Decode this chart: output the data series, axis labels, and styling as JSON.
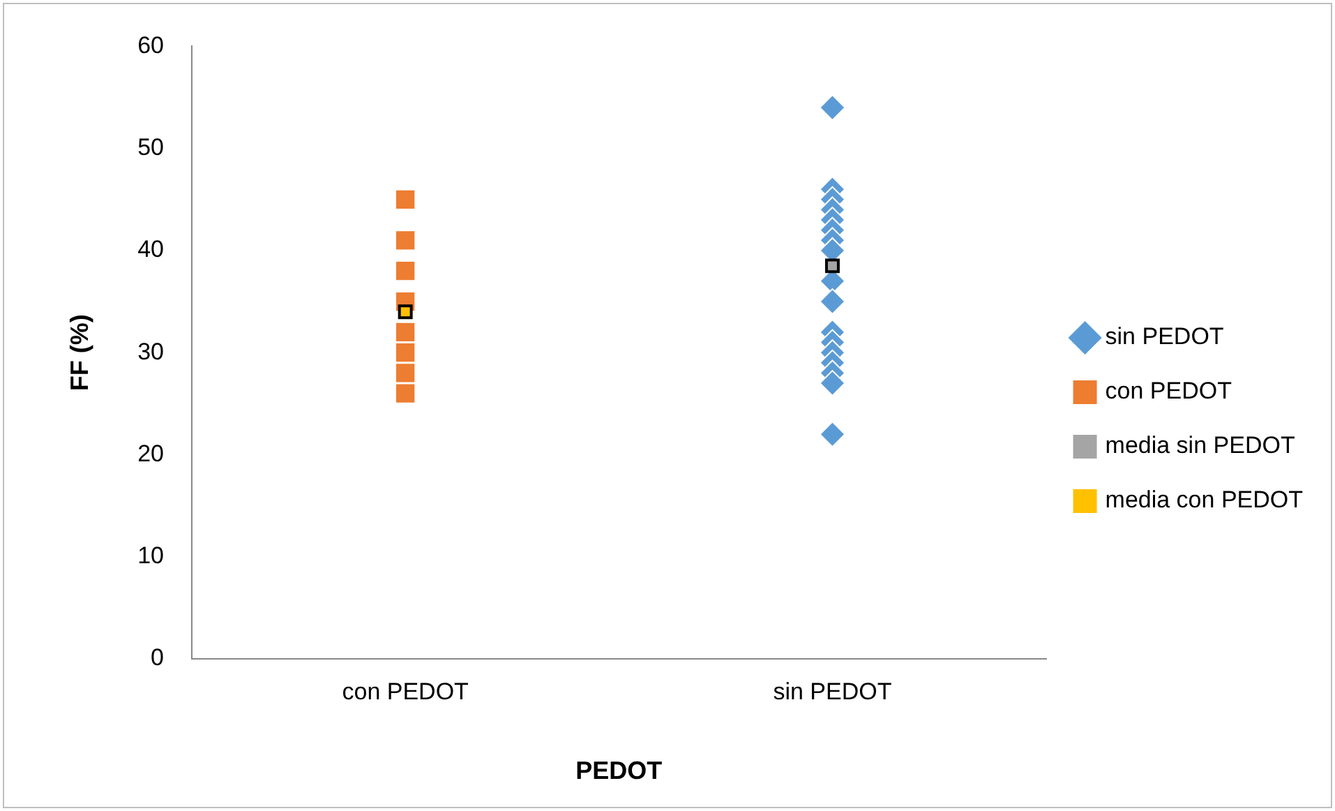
{
  "chart_data": {
    "type": "scatter",
    "xlabel": "PEDOT",
    "ylabel": "FF (%)",
    "categories": [
      "con PEDOT",
      "sin PEDOT"
    ],
    "ylim": [
      0,
      60
    ],
    "yticks": [
      0,
      10,
      20,
      30,
      40,
      50,
      60
    ],
    "grid": false,
    "legend": "right",
    "series": [
      {
        "name": "sin PEDOT",
        "color": "#5b9bd5",
        "marker": "diamond",
        "x": [
          "sin PEDOT",
          "sin PEDOT",
          "sin PEDOT",
          "sin PEDOT",
          "sin PEDOT",
          "sin PEDOT",
          "sin PEDOT",
          "sin PEDOT",
          "sin PEDOT",
          "sin PEDOT",
          "sin PEDOT",
          "sin PEDOT",
          "sin PEDOT",
          "sin PEDOT",
          "sin PEDOT",
          "sin PEDOT",
          "sin PEDOT"
        ],
        "values": [
          54,
          46,
          45,
          44,
          43,
          42,
          41,
          40,
          37,
          35,
          32,
          31,
          30,
          29,
          28,
          27,
          22
        ]
      },
      {
        "name": "con PEDOT",
        "color": "#ed7d31",
        "marker": "square",
        "x": [
          "con PEDOT",
          "con PEDOT",
          "con PEDOT",
          "con PEDOT",
          "con PEDOT",
          "con PEDOT",
          "con PEDOT",
          "con PEDOT"
        ],
        "values": [
          45,
          41,
          38,
          35,
          32,
          30,
          28,
          26
        ]
      },
      {
        "name": "media sin PEDOT",
        "color": "#a5a5a5",
        "marker": "square",
        "x": [
          "sin PEDOT"
        ],
        "values": [
          38.5
        ]
      },
      {
        "name": "media con PEDOT",
        "color": "#ffc000",
        "marker": "square",
        "x": [
          "con PEDOT"
        ],
        "values": [
          34
        ]
      }
    ]
  }
}
